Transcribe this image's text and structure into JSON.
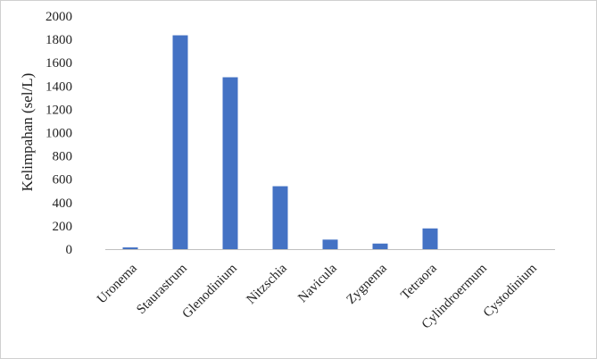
{
  "chart_data": {
    "type": "bar",
    "categories": [
      "Uronema",
      "Staurastrum",
      "Glenodinium",
      "Nitzschia",
      "Navicula",
      "Zygnema",
      "Tetraora",
      "Cylindroermum",
      "Cystodinium"
    ],
    "values": [
      15,
      1835,
      1475,
      540,
      82,
      48,
      178,
      0,
      0
    ],
    "title": "",
    "xlabel": "",
    "ylabel": "Kelimpahan (sel/L)",
    "ylim": [
      0,
      2000
    ],
    "yticks": [
      0,
      200,
      400,
      600,
      800,
      1000,
      1200,
      1400,
      1600,
      1800,
      2000
    ],
    "bar_color": "#4472c4",
    "grid": false,
    "legend": "none"
  }
}
